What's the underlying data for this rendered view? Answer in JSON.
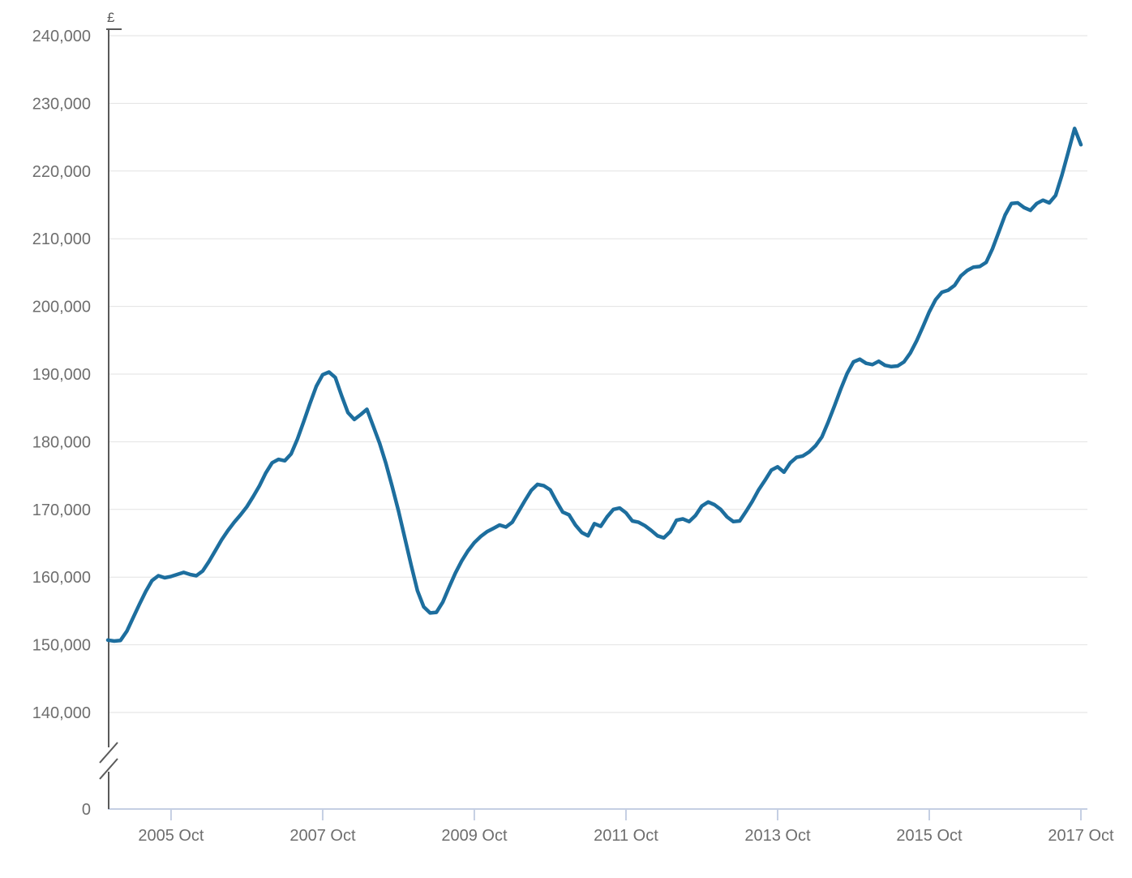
{
  "colors": {
    "background": "#ffffff",
    "grid": "#e2e2e2",
    "y_axis": "#5a5a5a",
    "x_axis": "#c5cfe3",
    "tick_label": "#6e6e6e",
    "line": "#1d6e9e"
  },
  "chart_data": {
    "type": "line",
    "title": "",
    "unit_label": "£",
    "grid": "horizontal",
    "legend": "none",
    "ylim_display": [
      140000,
      240000
    ],
    "y_axis": {
      "unit": "£",
      "tick_labels": [
        "240,000",
        "230,000",
        "220,000",
        "210,000",
        "200,000",
        "190,000",
        "180,000",
        "170,000",
        "160,000",
        "150,000",
        "140,000",
        "0"
      ],
      "axis_break_between": [
        0,
        140000
      ]
    },
    "x_axis": {
      "tick_labels": [
        "2005 Oct",
        "2007 Oct",
        "2009 Oct",
        "2011 Oct",
        "2013 Oct",
        "2015 Oct",
        "2017 Oct"
      ],
      "interval": "monthly",
      "range_start": "2004 Dec",
      "range_end": "2017 Oct"
    },
    "series": {
      "start_month": "2004-12",
      "values": [
        150700,
        150550,
        150650,
        152000,
        154000,
        156000,
        157900,
        159500,
        160200,
        159900,
        160100,
        160400,
        160700,
        160400,
        160200,
        160900,
        162300,
        163900,
        165500,
        166900,
        168100,
        169200,
        170400,
        171900,
        173500,
        175400,
        176900,
        177400,
        177200,
        178200,
        180400,
        183000,
        185700,
        188200,
        189900,
        190300,
        189500,
        186800,
        184300,
        183300,
        184000,
        184800,
        182300,
        179800,
        176800,
        173400,
        169800,
        165800,
        161800,
        158000,
        155600,
        154700,
        154800,
        156300,
        158500,
        160600,
        162400,
        163900,
        165100,
        166000,
        166700,
        167200,
        167700,
        167400,
        168100,
        169700,
        171300,
        172800,
        173700,
        173500,
        172900,
        171200,
        169600,
        169200,
        167700,
        166600,
        166100,
        167900,
        167500,
        168900,
        170000,
        170200,
        169500,
        168300,
        168100,
        167600,
        166900,
        166100,
        165800,
        166700,
        168400,
        168600,
        168200,
        169100,
        170500,
        171100,
        170700,
        170000,
        168900,
        168200,
        168300,
        169700,
        171200,
        172900,
        174300,
        175800,
        176300,
        175500,
        176900,
        177700,
        177900,
        178500,
        179400,
        180700,
        182900,
        185300,
        187800,
        190100,
        191800,
        192200,
        191600,
        191400,
        191900,
        191300,
        191100,
        191200,
        191800,
        193100,
        194900,
        197000,
        199200,
        201000,
        202100,
        202400,
        203100,
        204500,
        205300,
        205800,
        205900,
        206500,
        208500,
        211000,
        213500,
        215200,
        215300,
        214600,
        214200,
        215200,
        215700,
        215300,
        216400,
        219400,
        222800,
        226300,
        223900
      ]
    }
  }
}
